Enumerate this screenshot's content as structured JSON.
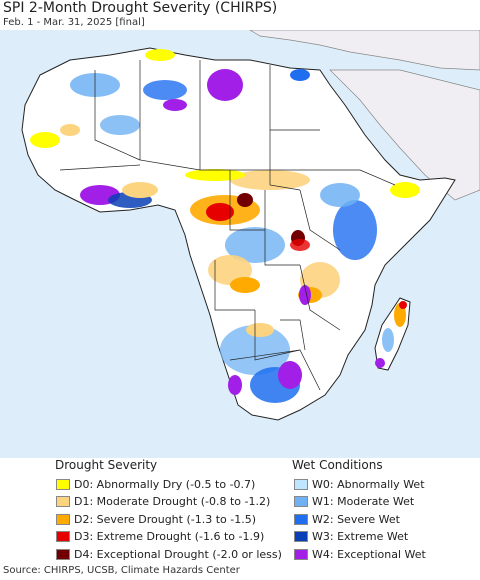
{
  "header": {
    "title": "SPI 2-Month Drought Severity (CHIRPS)",
    "subtitle": "Feb. 1 - Mar. 31, 2025 [final]"
  },
  "legend": {
    "drought": {
      "heading": "Drought Severity",
      "items": [
        {
          "code": "D0",
          "label": "D0: Abnormally Dry (-0.5 to -0.7)",
          "color": "#ffff00"
        },
        {
          "code": "D1",
          "label": "D1: Moderate Drought (-0.8 to -1.2)",
          "color": "#fcd37f"
        },
        {
          "code": "D2",
          "label": "D2: Severe Drought (-1.3 to -1.5)",
          "color": "#ffaa00"
        },
        {
          "code": "D3",
          "label": "D3: Extreme Drought (-1.6 to -1.9)",
          "color": "#e60000"
        },
        {
          "code": "D4",
          "label": "D4: Exceptional Drought (-2.0 or less)",
          "color": "#730000"
        }
      ]
    },
    "wet": {
      "heading": "Wet Conditions",
      "items": [
        {
          "code": "W0",
          "label": "W0: Abnormally Wet",
          "color": "#bfe6ff"
        },
        {
          "code": "W1",
          "label": "W1: Moderate Wet",
          "color": "#6fb1f3"
        },
        {
          "code": "W2",
          "label": "W2: Severe Wet",
          "color": "#1f6ef0"
        },
        {
          "code": "W3",
          "label": "W3: Extreme Wet",
          "color": "#0a3fb5"
        },
        {
          "code": "W4",
          "label": "W4: Exceptional Wet",
          "color": "#a11fe6"
        }
      ]
    }
  },
  "footer": {
    "source": "Source: CHIRPS, UCSB, Climate Hazards Center"
  },
  "map": {
    "land_color": "#ffffff",
    "ocean_color": "#ddeefa",
    "outside_color": "#f0eef2",
    "border_color": "#222222"
  }
}
